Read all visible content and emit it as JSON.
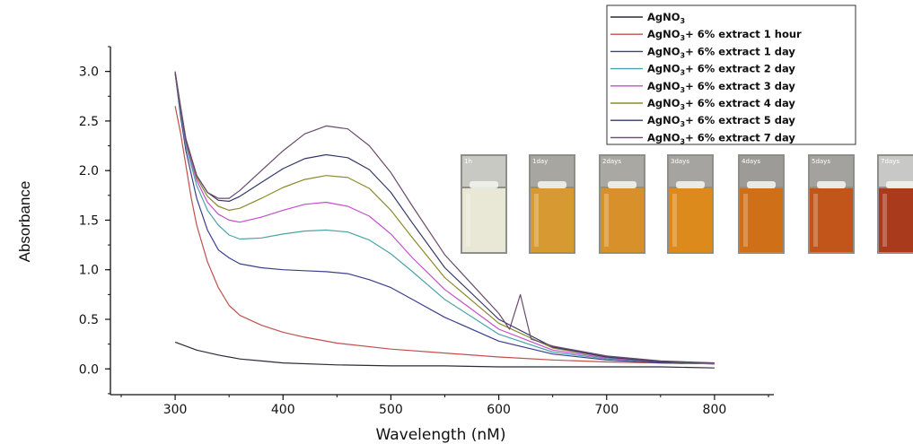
{
  "chart_data": {
    "type": "line",
    "title": "",
    "xlabel": "Wavelength (nM)",
    "ylabel": "Absorbance",
    "xlim": [
      240,
      855
    ],
    "ylim": [
      -0.26,
      3.25
    ],
    "xticks": [
      300,
      400,
      500,
      600,
      700,
      800
    ],
    "yticks": [
      0.0,
      0.5,
      1.0,
      1.5,
      2.0,
      2.5,
      3.0
    ],
    "xtick_labels": [
      "300",
      "400",
      "500",
      "600",
      "700",
      "800"
    ],
    "ytick_labels": [
      "0.0",
      "0.5",
      "1.0",
      "1.5",
      "2.0",
      "2.5",
      "3.0"
    ],
    "grid": false,
    "legend_position": "top-right",
    "series": [
      {
        "name": "AgNO3",
        "name_base": "AgNO",
        "name_sub": "3",
        "name_rest": "",
        "color": "#2b2b3a",
        "x": [
          300,
          320,
          340,
          360,
          380,
          400,
          450,
          500,
          550,
          600,
          650,
          700,
          750,
          800
        ],
        "y": [
          0.27,
          0.19,
          0.14,
          0.1,
          0.08,
          0.06,
          0.04,
          0.03,
          0.03,
          0.02,
          0.02,
          0.02,
          0.02,
          0.01
        ]
      },
      {
        "name": "AgNO3+ 6%  extract 1 hour",
        "name_base": "AgNO",
        "name_sub": "3",
        "name_rest": "+ 6%  extract 1 hour",
        "color": "#c0504d",
        "x": [
          300,
          305,
          310,
          315,
          320,
          330,
          340,
          350,
          360,
          380,
          400,
          420,
          450,
          500,
          550,
          600,
          650,
          700,
          750,
          800
        ],
        "y": [
          2.65,
          2.38,
          2.05,
          1.72,
          1.45,
          1.08,
          0.82,
          0.64,
          0.54,
          0.44,
          0.37,
          0.32,
          0.26,
          0.2,
          0.16,
          0.12,
          0.09,
          0.07,
          0.06,
          0.05
        ]
      },
      {
        "name": "AgNO3+ 6%  extract 1 day",
        "name_base": "AgNO",
        "name_sub": "3",
        "name_rest": "+ 6%  extract 1 day",
        "color": "#3b3f8c",
        "x": [
          300,
          305,
          310,
          320,
          330,
          340,
          350,
          360,
          380,
          400,
          420,
          440,
          460,
          480,
          500,
          520,
          550,
          600,
          650,
          700,
          750,
          800
        ],
        "y": [
          2.98,
          2.55,
          2.2,
          1.72,
          1.4,
          1.2,
          1.12,
          1.06,
          1.02,
          1.0,
          0.99,
          0.98,
          0.96,
          0.9,
          0.82,
          0.7,
          0.52,
          0.28,
          0.15,
          0.09,
          0.06,
          0.05
        ]
      },
      {
        "name": "AgNO3+ 6%  extract 2 day",
        "name_base": "AgNO",
        "name_sub": "3",
        "name_rest": "+ 6%  extract 2 day",
        "color": "#4aa3a8",
        "x": [
          300,
          305,
          310,
          320,
          330,
          340,
          350,
          360,
          380,
          400,
          420,
          440,
          460,
          480,
          500,
          520,
          550,
          600,
          650,
          700,
          750,
          800
        ],
        "y": [
          2.98,
          2.6,
          2.25,
          1.85,
          1.6,
          1.45,
          1.35,
          1.31,
          1.32,
          1.36,
          1.39,
          1.4,
          1.38,
          1.3,
          1.16,
          0.98,
          0.7,
          0.35,
          0.17,
          0.1,
          0.07,
          0.05
        ]
      },
      {
        "name": "AgNO3+ 6%  extract 3 day",
        "name_base": "AgNO",
        "name_sub": "3",
        "name_rest": "+ 6%  extract 3 day",
        "color": "#c24fc9",
        "x": [
          300,
          305,
          310,
          320,
          330,
          340,
          350,
          360,
          380,
          400,
          420,
          440,
          460,
          480,
          500,
          520,
          550,
          600,
          650,
          700,
          750,
          800
        ],
        "y": [
          2.98,
          2.62,
          2.28,
          1.9,
          1.68,
          1.56,
          1.5,
          1.48,
          1.53,
          1.6,
          1.66,
          1.68,
          1.64,
          1.54,
          1.36,
          1.12,
          0.8,
          0.4,
          0.19,
          0.11,
          0.07,
          0.05
        ]
      },
      {
        "name": "AgNO3+ 6%  extract 4 day",
        "name_base": "AgNO",
        "name_sub": "3",
        "name_rest": "+ 6%  extract 4 day",
        "color": "#8a8a2e",
        "x": [
          300,
          305,
          310,
          320,
          330,
          340,
          350,
          360,
          380,
          400,
          420,
          440,
          460,
          480,
          500,
          520,
          550,
          600,
          650,
          700,
          750,
          800
        ],
        "y": [
          2.98,
          2.63,
          2.3,
          1.93,
          1.74,
          1.64,
          1.6,
          1.62,
          1.72,
          1.83,
          1.91,
          1.95,
          1.93,
          1.82,
          1.6,
          1.32,
          0.92,
          0.46,
          0.21,
          0.12,
          0.07,
          0.05
        ]
      },
      {
        "name": "AgNO3+ 6%  extract 5 day",
        "name_base": "AgNO",
        "name_sub": "3",
        "name_rest": "+ 6%  extract 5 day",
        "color": "#343868",
        "x": [
          300,
          305,
          310,
          320,
          330,
          340,
          350,
          360,
          380,
          400,
          420,
          440,
          460,
          480,
          500,
          520,
          550,
          600,
          650,
          700,
          750,
          800
        ],
        "y": [
          2.99,
          2.64,
          2.31,
          1.95,
          1.78,
          1.7,
          1.69,
          1.74,
          1.88,
          2.02,
          2.12,
          2.16,
          2.13,
          2.01,
          1.78,
          1.47,
          1.02,
          0.5,
          0.22,
          0.12,
          0.07,
          0.06
        ]
      },
      {
        "name": "AgNO3+ 6%  extract 7 day",
        "name_base": "AgNO",
        "name_sub": "3",
        "name_rest": "+ 6%  extract 7 day",
        "color": "#6a4a6a",
        "x": [
          300,
          305,
          310,
          320,
          330,
          340,
          350,
          360,
          380,
          400,
          420,
          440,
          460,
          480,
          500,
          520,
          550,
          600,
          610,
          620,
          630,
          650,
          700,
          750,
          800
        ],
        "y": [
          3.0,
          2.65,
          2.32,
          1.95,
          1.78,
          1.72,
          1.72,
          1.8,
          2.0,
          2.2,
          2.37,
          2.45,
          2.42,
          2.25,
          1.98,
          1.64,
          1.15,
          0.56,
          0.4,
          0.75,
          0.3,
          0.23,
          0.13,
          0.08,
          0.06
        ]
      }
    ]
  },
  "vials": [
    {
      "label": "1h",
      "liquid": "#e9e8d6",
      "top": "#c9c9c4"
    },
    {
      "label": "1day",
      "liquid": "#d79a32",
      "top": "#a7a6a1"
    },
    {
      "label": "2days",
      "liquid": "#d8912a",
      "top": "#a9a8a3"
    },
    {
      "label": "3days",
      "liquid": "#dd8a1c",
      "top": "#a5a4a0"
    },
    {
      "label": "4days",
      "liquid": "#cf6f17",
      "top": "#9c9b97"
    },
    {
      "label": "5days",
      "liquid": "#c2561a",
      "top": "#a3a29e"
    },
    {
      "label": "7days",
      "liquid": "#a93a1c",
      "top": "#c8c8c6"
    }
  ]
}
